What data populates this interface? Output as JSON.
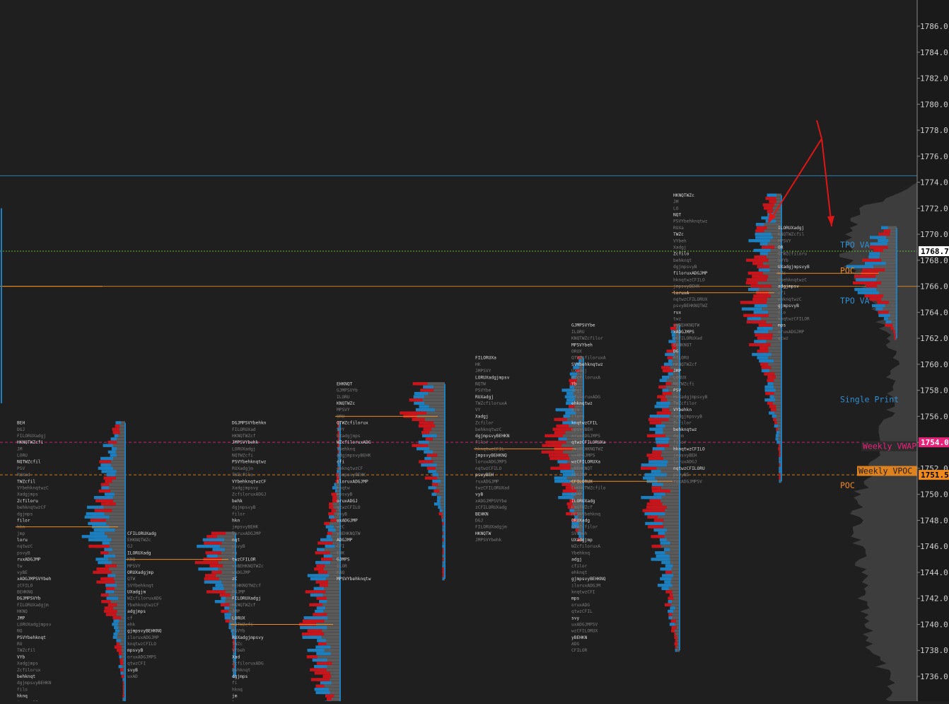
{
  "chart_data": {
    "type": "market-profile",
    "title": "",
    "xlabel": "",
    "ylabel": "",
    "y_axis": {
      "ylim": [
        1734.0,
        1788.0
      ],
      "step": 2,
      "ticks": [
        1786.0,
        1784.0,
        1782.0,
        1780.0,
        1778.0,
        1776.0,
        1774.0,
        1772.0,
        1770.0,
        1768.0,
        1766.0,
        1764.0,
        1762.0,
        1760.0,
        1758.0,
        1756.0,
        1754.0,
        1752.0,
        1750.0,
        1748.0,
        1746.0,
        1744.0,
        1742.0,
        1740.0,
        1738.0,
        1736.0
      ],
      "tick_labels": [
        "1786.0",
        "1784.0",
        "1782.0",
        "1780.0",
        "1778.0",
        "1776.0",
        "1774.0",
        "1772.0",
        "1770.0",
        "1768.0",
        "1766.0",
        "1764.0",
        "1762.0",
        "1760.0",
        "1758.0",
        "1756.0",
        "1754.0",
        "1752.0",
        "1750.0",
        "1748.0",
        "1746.0",
        "1744.0",
        "1742.0",
        "1740.0",
        "1738.0",
        "1736.0"
      ]
    },
    "price_markers": [
      {
        "label": "1768.7",
        "price": 1768.7,
        "bg": "#ffffff",
        "fg": "#000000"
      },
      {
        "label": "1754.0",
        "price": 1754.0,
        "bg": "#e8237a",
        "fg": "#ffffff"
      },
      {
        "label": "1751.5",
        "price": 1751.5,
        "bg": "#f08a1c",
        "fg": "#000000"
      }
    ],
    "annotations": [
      {
        "text": "TPO VA",
        "price": 1769.2,
        "color": "#2f8fd0"
      },
      {
        "text": "POC",
        "price": 1767.2,
        "color": "#f08a1c"
      },
      {
        "text": "TPO VA",
        "price": 1764.9,
        "color": "#2f8fd0"
      },
      {
        "text": "Single Print",
        "price": 1757.3,
        "color": "#2f8fd0"
      },
      {
        "text": "Weekly VWAP",
        "price": 1753.7,
        "color": "#e8237a"
      },
      {
        "text": "Weekly VPOC",
        "price": 1751.8,
        "color": "#f08a1c"
      },
      {
        "text": "POC",
        "price": 1750.7,
        "color": "#f08a1c"
      }
    ],
    "horizontal_levels": [
      {
        "price": 1774.5,
        "style": "solid",
        "color": "#2f8fd0"
      },
      {
        "price": 1768.7,
        "style": "dotted",
        "color": "#6fd13a"
      },
      {
        "price": 1766.0,
        "style": "solid",
        "color": "#f08a1c"
      },
      {
        "price": 1754.0,
        "style": "dashed",
        "color": "#e8237a"
      },
      {
        "price": 1751.5,
        "style": "dashed",
        "color": "#f08a1c"
      }
    ],
    "sessions": [
      {
        "high": 1772.0,
        "low": 1757.0,
        "poc": 1766.0
      },
      {
        "high": 1755.5,
        "low": 1734.0,
        "poc": 1747.5
      },
      {
        "high": 1747.0,
        "low": 1736.0,
        "poc": 1745.0
      },
      {
        "high": 1755.5,
        "low": 1734.0,
        "poc": 1740.0
      },
      {
        "high": 1758.5,
        "low": 1743.5,
        "poc": 1756.0
      },
      {
        "high": 1760.5,
        "low": 1746.5,
        "poc": 1753.5
      },
      {
        "high": 1763.0,
        "low": 1738.0,
        "poc": 1751.0
      },
      {
        "high": 1773.0,
        "low": 1751.0,
        "poc": 1765.5
      },
      {
        "high": 1770.5,
        "low": 1762.0,
        "poc": 1767.0
      }
    ],
    "colors": {
      "background": "#1f1f1f",
      "profile_bull": "#1b7fc0",
      "profile_bear": "#c8141a",
      "profile_neutral": "#5a5a5a",
      "poc": "#f08a1c",
      "volume_profile": "#3d3d3d",
      "arrow": "#e01515"
    }
  }
}
